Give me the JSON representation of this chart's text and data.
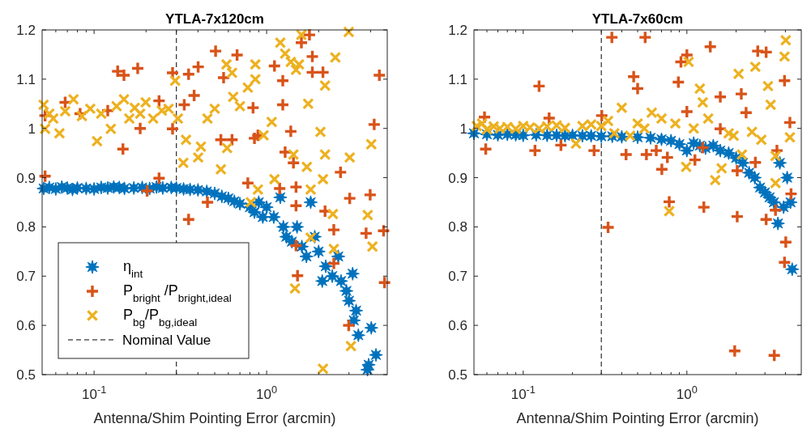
{
  "chart_data": [
    {
      "type": "scatter",
      "title": "YTLA-7x120cm",
      "xlabel": "Antenna/Shim Pointing Error (arcmin)",
      "log": "x",
      "grid": false,
      "legend": "bottom left",
      "xlim": [
        0.05,
        5
      ],
      "ylim": [
        0.5,
        1.2
      ],
      "xticks": [
        {
          "value": 0.06,
          "label": null
        },
        {
          "value": 0.07,
          "label": null
        },
        {
          "value": 0.08,
          "label": null
        },
        {
          "value": 0.09,
          "label": null
        },
        {
          "value": 0.1,
          "label": "10$^{-1}$"
        },
        {
          "value": 0.2,
          "label": null
        },
        {
          "value": 0.3,
          "label": null
        },
        {
          "value": 0.4,
          "label": null
        },
        {
          "value": 0.5,
          "label": null
        },
        {
          "value": 0.6,
          "label": null
        },
        {
          "value": 0.7,
          "label": null
        },
        {
          "value": 0.8,
          "label": null
        },
        {
          "value": 0.9,
          "label": null
        },
        {
          "value": 1,
          "label": "10$^{0}$"
        },
        {
          "value": 2,
          "label": null
        },
        {
          "value": 3,
          "label": null
        },
        {
          "value": 4,
          "label": null
        }
      ],
      "yticks": [
        0.5,
        0.6,
        0.7,
        0.8,
        0.9,
        1,
        1.1,
        1.2
      ],
      "ref_lines": [
        {
          "axis": "x",
          "value": 0.3,
          "label": "Nominal Value",
          "color": "#000000",
          "line_style": "dashed"
        }
      ],
      "series": [
        {
          "name": "η$_{int}$",
          "color": "#0072bd",
          "marker": "star",
          "x": [
            0.051,
            0.055,
            0.06,
            0.065,
            0.07,
            0.075,
            0.08,
            0.09,
            0.1,
            0.11,
            0.12,
            0.13,
            0.14,
            0.15,
            0.17,
            0.19,
            0.21,
            0.23,
            0.25,
            0.28,
            0.3,
            0.33,
            0.36,
            0.4,
            0.45,
            0.5,
            0.55,
            0.6,
            0.65,
            0.7,
            0.8,
            0.85,
            0.9,
            0.95,
            1.0,
            1.1,
            1.2,
            1.25,
            1.3,
            1.4,
            1.5,
            1.6,
            1.7,
            1.8,
            1.9,
            2.0,
            2.1,
            2.2,
            2.4,
            2.6,
            2.7,
            2.9,
            3.0,
            3.15,
            3.2,
            3.3,
            3.4,
            3.84,
            3.9,
            4.04,
            4.3
          ],
          "values": [
            0.878,
            0.88,
            0.877,
            0.881,
            0.879,
            0.876,
            0.879,
            0.878,
            0.877,
            0.88,
            0.879,
            0.881,
            0.88,
            0.878,
            0.879,
            0.88,
            0.878,
            0.881,
            0.879,
            0.88,
            0.879,
            0.877,
            0.876,
            0.875,
            0.872,
            0.868,
            0.862,
            0.858,
            0.852,
            0.847,
            0.84,
            0.83,
            0.85,
            0.82,
            0.84,
            0.82,
            0.86,
            0.8,
            0.78,
            0.77,
            0.8,
            0.76,
            0.74,
            0.85,
            0.78,
            0.75,
            0.69,
            0.72,
            0.7,
            0.74,
            0.69,
            0.67,
            0.65,
            0.705,
            0.61,
            0.63,
            0.58,
            0.51,
            0.52,
            0.595,
            0.54
          ]
        },
        {
          "name": "P$_{bright}$ /P$_{bright,ideal}$",
          "color": "#d95319",
          "marker": "cross",
          "x": [
            0.052,
            0.052,
            0.068,
            0.083,
            0.12,
            0.137,
            0.149,
            0.179,
            0.147,
            0.185,
            0.203,
            0.238,
            0.285,
            0.285,
            0.238,
            0.353,
            0.353,
            0.333,
            0.38,
            0.401,
            0.454,
            0.506,
            0.674,
            0.563,
            0.543,
            0.63,
            0.778,
            0.834,
            0.85,
            0.89,
            1.11,
            1.24,
            1.24,
            1.19,
            1.28,
            1.38,
            1.43,
            1.48,
            1.48,
            1.51,
            1.48,
            1.59,
            1.77,
            1.84,
            1.84,
            2.12,
            2.18,
            2.45,
            2.45,
            2.68,
            2.99,
            3.03,
            3.77,
            3.98,
            4.2,
            4.5,
            4.76,
            4.82
          ],
          "values": [
            1.026,
            0.903,
            1.053,
            1.03,
            1.036,
            1.116,
            1.108,
            1.122,
            0.958,
            1.0,
            0.873,
            0.899,
            1.113,
            0.999,
            1.056,
            0.815,
            1.11,
            1.048,
            1.067,
            1.125,
            0.85,
            1.157,
            1.149,
            1.103,
            0.977,
            0.977,
            0.889,
            1.042,
            0.98,
            0.986,
            1.127,
            1.097,
            1.048,
            0.878,
            0.952,
            0.994,
            0.93,
            0.881,
            0.843,
            0.701,
            0.762,
            1.174,
            1.19,
            1.114,
            1.146,
            1.114,
            0.832,
            0.794,
            0.726,
            0.911,
            0.6,
            0.858,
            0.787,
            0.865,
            1.008,
            1.108,
            0.792,
            0.687
          ]
        },
        {
          "name": "P$_{bg}$/P$_{bg,ideal}$",
          "color": "#edb120",
          "marker": "x",
          "x": [
            0.051,
            0.052,
            0.055,
            0.058,
            0.063,
            0.068,
            0.076,
            0.085,
            0.095,
            0.104,
            0.11,
            0.125,
            0.135,
            0.149,
            0.16,
            0.172,
            0.185,
            0.199,
            0.22,
            0.247,
            0.27,
            0.295,
            0.306,
            0.329,
            0.341,
            0.401,
            0.416,
            0.454,
            0.5,
            0.543,
            0.585,
            0.59,
            0.63,
            0.64,
            0.7,
            0.778,
            0.81,
            0.86,
            0.86,
            0.89,
            0.96,
            1.07,
            1.11,
            1.2,
            1.28,
            1.38,
            1.43,
            1.48,
            1.54,
            1.59,
            1.46,
            1.71,
            1.8,
            1.8,
            1.74,
            2.05,
            2.12,
            2.12,
            2.18,
            2.18,
            2.42,
            2.45,
            2.5,
            2.99,
            3.03,
            3.08,
            3.85,
            4.04,
            4.1
          ],
          "values": [
            1.048,
            0.999,
            1.03,
            1.02,
            0.99,
            1.035,
            1.059,
            1.025,
            1.04,
            0.974,
            1.03,
            0.999,
            1.045,
            1.059,
            1.02,
            1.042,
            1.03,
            1.053,
            1.02,
            1.036,
            1.04,
            1.097,
            1.02,
            0.93,
            0.977,
            0.941,
            0.963,
            1.02,
            1.04,
            0.917,
            1.13,
            0.96,
            1.113,
            1.064,
            1.045,
            1.083,
            0.85,
            1.13,
            1.1,
            0.876,
            0.986,
            1.013,
            0.897,
            1.174,
            1.152,
            1.135,
            0.947,
            1.119,
            1.13,
            1.19,
            0.675,
            0.922,
            0.876,
            0.778,
            1.05,
            0.993,
            0.512,
            0.897,
            0.947,
            1.087,
            0.826,
            0.755,
            1.144,
            1.196,
            0.941,
            0.558,
            0.824,
            0.968,
            0.76
          ]
        }
      ]
    },
    {
      "type": "scatter",
      "title": "YTLA-7x60cm",
      "xlabel": "Antenna/Shim Pointing Error (arcmin)",
      "log": "x",
      "grid": false,
      "legend": false,
      "xlim": [
        0.05,
        5
      ],
      "ylim": [
        0.5,
        1.2
      ],
      "xticks": [
        {
          "value": 0.06,
          "label": null
        },
        {
          "value": 0.07,
          "label": null
        },
        {
          "value": 0.08,
          "label": null
        },
        {
          "value": 0.09,
          "label": null
        },
        {
          "value": 0.1,
          "label": "10$^{-1}$"
        },
        {
          "value": 0.2,
          "label": null
        },
        {
          "value": 0.3,
          "label": null
        },
        {
          "value": 0.4,
          "label": null
        },
        {
          "value": 0.5,
          "label": null
        },
        {
          "value": 0.6,
          "label": null
        },
        {
          "value": 0.7,
          "label": null
        },
        {
          "value": 0.8,
          "label": null
        },
        {
          "value": 0.9,
          "label": null
        },
        {
          "value": 1,
          "label": "10$^{0}$"
        },
        {
          "value": 2,
          "label": null
        },
        {
          "value": 3,
          "label": null
        },
        {
          "value": 4,
          "label": null
        }
      ],
      "yticks": [
        0.5,
        0.6,
        0.7,
        0.8,
        0.9,
        1,
        1.1,
        1.2
      ],
      "ref_lines": [
        {
          "axis": "x",
          "value": 0.3,
          "color": "#000000",
          "line_style": "dashed"
        }
      ],
      "series": [
        {
          "color": "#0072bd",
          "marker": "star",
          "x": [
            0.05,
            0.06,
            0.07,
            0.08,
            0.09,
            0.1,
            0.12,
            0.14,
            0.16,
            0.18,
            0.2,
            0.23,
            0.26,
            0.3,
            0.35,
            0.4,
            null,
            0.5,
            0.6,
            0.7,
            0.8,
            0.9,
            1.0,
            1.1,
            1.2,
            1.3,
            1.45,
            1.6,
            1.8,
            2.0,
            2.2,
            2.4,
            2.6,
            2.8,
            3.0,
            3.2,
            3.4,
            3.6,
            3.7,
            3.9,
            4.1,
            4.3,
            4.4
          ],
          "values": [
            0.99,
            0.988,
            0.987,
            0.988,
            0.987,
            0.986,
            0.987,
            0.986,
            0.986,
            0.985,
            0.986,
            0.985,
            0.985,
            0.984,
            0.984,
            0.983,
            null,
            0.982,
            0.981,
            0.978,
            0.975,
            0.968,
            0.955,
            0.97,
            0.965,
            0.96,
            0.965,
            0.955,
            0.95,
            0.94,
            0.93,
            0.91,
            0.9,
            0.88,
            0.87,
            0.86,
            0.85,
            0.807,
            0.93,
            0.84,
            0.9,
            0.85,
            0.714
          ]
        },
        {
          "color": "#d95319",
          "marker": "cross",
          "x": [
            0.058,
            0.059,
            0.125,
            0.118,
            0.144,
            0.17,
            0.271,
            0.302,
            0.348,
            0.33,
            0.473,
            0.5,
            0.556,
            0.425,
            0.566,
            0.65,
            0.703,
            0.76,
            0.78,
            0.887,
            0.92,
            1.0,
            1.0,
            1.12,
            1.25,
            1.27,
            1.39,
            1.6,
            1.6,
            1.96,
            2.03,
            2.03,
            2.15,
            2.3,
            2.62,
            2.71,
            3.05,
            3.05,
            3.42,
            3.48,
            3.55,
            3.95,
            3.95,
            4.02,
            4.26,
            4.33
          ],
          "values": [
            1.023,
            0.958,
            1.086,
            0.955,
            1.021,
            0.966,
            0.955,
            1.026,
            1.185,
            0.799,
            1.105,
            1.081,
            1.185,
            0.947,
            0.947,
            0.955,
            0.917,
            0.941,
            0.851,
            1.094,
            1.135,
            1.149,
            1.034,
            0.936,
            0.961,
            0.84,
            1.166,
            1.064,
            0.999,
            0.548,
            0.821,
            0.914,
            1.07,
            1.032,
            0.931,
            1.157,
            1.155,
            0.815,
            0.539,
            0.834,
            0.955,
            1.097,
            0.728,
            0.769,
            1.012,
            0.867
          ]
        },
        {
          "color": "#edb120",
          "marker": "x",
          "x": [
            0.052,
            0.056,
            0.06,
            0.066,
            0.072,
            0.08,
            0.09,
            0.1,
            0.11,
            0.125,
            0.14,
            0.16,
            0.18,
            0.21,
            0.23,
            0.26,
            0.3,
            0.33,
            0.36,
            0.4,
            0.45,
            0.5,
            0.55,
            0.61,
            0.7,
            0.78,
            0.85,
            0.99,
            1.025,
            1.1,
            1.2,
            1.25,
            1.35,
            1.49,
            1.63,
            1.8,
            1.93,
            2.07,
            2.17,
            2.5,
            2.62,
            2.85,
            3.13,
            3.25,
            3.48,
            3.48,
            3.95,
            4.02,
            4.26
          ],
          "values": [
            1.005,
            1.01,
            0.998,
            1.004,
            1.0,
            1.003,
            0.999,
            1.005,
            1.002,
            1.0,
            1.004,
            1.006,
            1.001,
            0.969,
            1.005,
            1.008,
            1.005,
            1.015,
            0.99,
            1.042,
            0.985,
            1.01,
            1.0,
            1.032,
            1.02,
            0.832,
            1.01,
            0.922,
            1.135,
            1.0,
            1.081,
            1.053,
            1.02,
            0.895,
            0.919,
            0.99,
            0.985,
            1.111,
            0.947,
            0.993,
            1.125,
            0.977,
            1.086,
            1.048,
            0.889,
            0.944,
            1.146,
            1.179,
            0.982
          ]
        }
      ]
    }
  ]
}
